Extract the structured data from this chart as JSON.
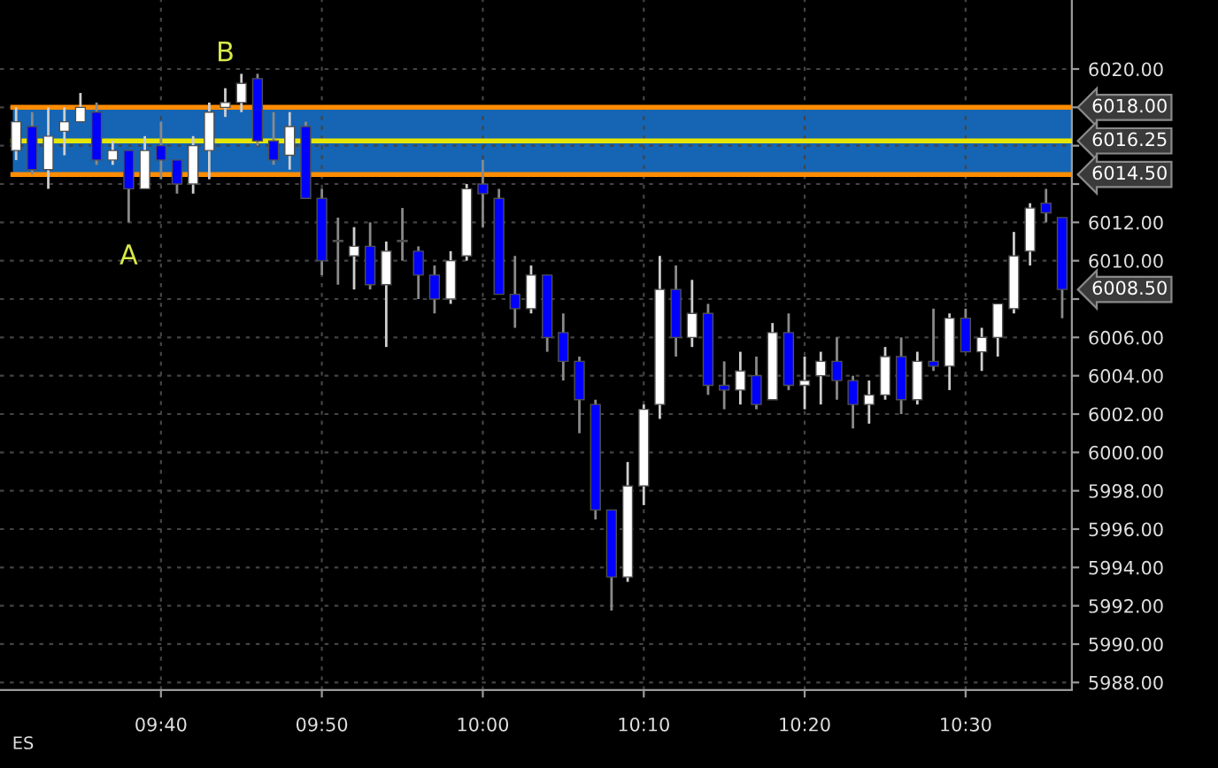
{
  "chart_data": {
    "type": "candlestick",
    "x": [
      9.5167,
      9.5333,
      9.55,
      9.5667,
      9.5833,
      9.6,
      9.6167,
      9.6333,
      9.65,
      9.6667,
      9.6833,
      9.7,
      9.7167,
      9.7333,
      9.75,
      9.7667,
      9.7833,
      9.8,
      9.8167,
      9.8333,
      9.85,
      9.8667,
      9.8833,
      9.9,
      9.9167,
      9.9333,
      9.95,
      9.9667,
      9.9833,
      10.0,
      10.0167,
      10.0333,
      10.05,
      10.0667,
      10.0833,
      10.1,
      10.1167,
      10.1333,
      10.15,
      10.1667,
      10.1833,
      10.2,
      10.2167,
      10.2333,
      10.25,
      10.2667,
      10.2833,
      10.3,
      10.3167,
      10.3333,
      10.35,
      10.3667,
      10.3833,
      10.4,
      10.4167,
      10.4333,
      10.45,
      10.4667,
      10.4833,
      10.5,
      10.5167,
      10.5333,
      10.55,
      10.5667,
      10.5833,
      10.6
    ],
    "ohlc": [
      [
        6015.75,
        6018,
        6015.25,
        6017.25
      ],
      [
        6017,
        6017.75,
        6014.5,
        6014.75
      ],
      [
        6014.75,
        6018,
        6013.75,
        6016.5
      ],
      [
        6016.75,
        6018,
        6015.5,
        6017.25
      ],
      [
        6017.25,
        6018.75,
        6017.25,
        6018
      ],
      [
        6017.75,
        6018.25,
        6015,
        6015.25
      ],
      [
        6015.25,
        6016.25,
        6015,
        6015.75
      ],
      [
        6015.75,
        6015.75,
        6012,
        6013.75
      ],
      [
        6013.75,
        6016.5,
        6013.75,
        6015.75
      ],
      [
        6016,
        6017.25,
        6014.25,
        6015.25
      ],
      [
        6015.25,
        6015.25,
        6013.5,
        6014
      ],
      [
        6014,
        6016.5,
        6013.5,
        6016
      ],
      [
        6015.75,
        6018.25,
        6014.25,
        6017.75
      ],
      [
        6018,
        6019,
        6017.5,
        6018.25
      ],
      [
        6018.25,
        6019.75,
        6017.75,
        6019.25
      ],
      [
        6019.5,
        6019.75,
        6016,
        6016.25
      ],
      [
        6016.25,
        6017.75,
        6015,
        6015.25
      ],
      [
        6015.5,
        6017.75,
        6014.75,
        6017
      ],
      [
        6017,
        6017.25,
        6013.25,
        6013.25
      ],
      [
        6013.25,
        6013.75,
        6009.25,
        6010
      ],
      [
        6011,
        6012.25,
        6008.75,
        6011
      ],
      [
        6010.25,
        6011.75,
        6008.5,
        6010.75
      ],
      [
        6010.75,
        6012,
        6008.5,
        6008.75
      ],
      [
        6008.75,
        6011,
        6005.5,
        6010.5
      ],
      [
        6011,
        6012.75,
        6010,
        6011
      ],
      [
        6010.5,
        6010.75,
        6008,
        6009.25
      ],
      [
        6009.25,
        6009.75,
        6007.25,
        6008
      ],
      [
        6008,
        6010.5,
        6007.75,
        6010
      ],
      [
        6010.25,
        6014,
        6010,
        6013.75
      ],
      [
        6014,
        6015.25,
        6011.75,
        6013.5
      ],
      [
        6013.25,
        6013.75,
        6008.25,
        6008.25
      ],
      [
        6008.25,
        6010.25,
        6006.5,
        6007.5
      ],
      [
        6007.5,
        6009.75,
        6007.25,
        6009.25
      ],
      [
        6009.25,
        6009.25,
        6005.25,
        6006
      ],
      [
        6006.25,
        6007.25,
        6003.75,
        6004.75
      ],
      [
        6004.75,
        6005,
        6001,
        6002.75
      ],
      [
        6002.5,
        6002.75,
        5996.5,
        5997
      ],
      [
        5997,
        5997,
        5991.75,
        5993.5
      ],
      [
        5993.5,
        5999.5,
        5993.25,
        5998.25
      ],
      [
        5998.25,
        6002.5,
        5997.25,
        6002.25
      ],
      [
        6002.5,
        6010.25,
        6001.75,
        6008.5
      ],
      [
        6008.5,
        6009.75,
        6005,
        6006
      ],
      [
        6006,
        6009,
        6005.5,
        6007.25
      ],
      [
        6007.25,
        6007.75,
        6003,
        6003.5
      ],
      [
        6003.5,
        6004.75,
        6002.25,
        6003.25
      ],
      [
        6003.25,
        6005.25,
        6002.5,
        6004.25
      ],
      [
        6004,
        6005,
        6002.25,
        6002.5
      ],
      [
        6002.75,
        6006.75,
        6002.75,
        6006.25
      ],
      [
        6006.25,
        6007.25,
        6003.25,
        6003.5
      ],
      [
        6003.5,
        6005,
        6002.25,
        6003.75
      ],
      [
        6004,
        6005.25,
        6002.5,
        6004.75
      ],
      [
        6004.75,
        6006,
        6002.75,
        6003.75
      ],
      [
        6003.75,
        6004,
        6001.25,
        6002.5
      ],
      [
        6002.5,
        6003.75,
        6001.5,
        6003
      ],
      [
        6003,
        6005.5,
        6002.75,
        6005
      ],
      [
        6005,
        6006,
        6002,
        6002.75
      ],
      [
        6002.75,
        6005.25,
        6002.5,
        6004.75
      ],
      [
        6004.75,
        6007.5,
        6004.25,
        6004.5
      ],
      [
        6004.5,
        6007.25,
        6003.25,
        6007
      ],
      [
        6007,
        6007.5,
        6005.25,
        6005.25
      ],
      [
        6005.25,
        6006.5,
        6004.25,
        6006
      ],
      [
        6006,
        6007.75,
        6005,
        6007.75
      ],
      [
        6007.5,
        6011.5,
        6007.25,
        6010.25
      ],
      [
        6010.5,
        6013,
        6009.75,
        6012.75
      ],
      [
        6013,
        6013.75,
        6012,
        6012.5
      ],
      [
        6012.25,
        6012.25,
        6007,
        6008.5
      ]
    ],
    "colors": [
      "#ffffff",
      "#0000ff",
      "#ffffff",
      "#ffffff",
      "#ffffff",
      "#0000ff",
      "#ffffff",
      "#0000ff",
      "#ffffff",
      "#0000ff",
      "#0000ff",
      "#ffffff",
      "#ffffff",
      "#ffffff",
      "#ffffff",
      "#0000ff",
      "#0000ff",
      "#ffffff",
      "#0000ff",
      "#0000ff",
      "#808080",
      "#ffffff",
      "#0000ff",
      "#ffffff",
      "#808080",
      "#0000ff",
      "#0000ff",
      "#ffffff",
      "#ffffff",
      "#0000ff",
      "#0000ff",
      "#0000ff",
      "#ffffff",
      "#0000ff",
      "#0000ff",
      "#0000ff",
      "#0000ff",
      "#0000ff",
      "#ffffff",
      "#ffffff",
      "#ffffff",
      "#0000ff",
      "#ffffff",
      "#0000ff",
      "#0000ff",
      "#ffffff",
      "#0000ff",
      "#ffffff",
      "#0000ff",
      "#ffffff",
      "#ffffff",
      "#0000ff",
      "#0000ff",
      "#ffffff",
      "#ffffff",
      "#0000ff",
      "#ffffff",
      "#0000ff",
      "#ffffff",
      "#0000ff",
      "#ffffff",
      "#ffffff",
      "#ffffff",
      "#ffffff",
      "#0000ff",
      "#0000ff"
    ],
    "xlim": [
      9.5,
      10.61
    ],
    "xticks": [
      {
        "value": 9.6667,
        "label": "09:40"
      },
      {
        "value": 9.8333,
        "label": "09:50"
      },
      {
        "value": 10.0,
        "label": "10:00"
      },
      {
        "value": 10.1667,
        "label": "10:10"
      },
      {
        "value": 10.3333,
        "label": "10:20"
      },
      {
        "value": 10.5,
        "label": "10:30"
      }
    ],
    "ylim": [
      5987.6,
      6023.6
    ],
    "yticks": [
      {
        "value": 5988,
        "label": "5988.00"
      },
      {
        "value": 5990,
        "label": "5990.00"
      },
      {
        "value": 5992,
        "label": "5992.00"
      },
      {
        "value": 5994,
        "label": "5994.00"
      },
      {
        "value": 5996,
        "label": "5996.00"
      },
      {
        "value": 5998,
        "label": "5998.00"
      },
      {
        "value": 6000,
        "label": "6000.00"
      },
      {
        "value": 6002,
        "label": "6002.00"
      },
      {
        "value": 6004,
        "label": "6004.00"
      },
      {
        "value": 6006,
        "label": "6006.00"
      },
      {
        "value": 6008,
        "label": null
      },
      {
        "value": 6010,
        "label": "6010.00"
      },
      {
        "value": 6012,
        "label": "6012.00"
      },
      {
        "value": 6014,
        "label": null
      },
      {
        "value": 6016,
        "label": null
      },
      {
        "value": 6018,
        "label": null
      },
      {
        "value": 6020,
        "label": "6020.00"
      }
    ],
    "grid": true,
    "bands": [
      {
        "axis": "y",
        "from": 6014.5,
        "to": 6018,
        "color": "#1565b4"
      }
    ],
    "ref_lines": [
      {
        "axis": "y",
        "value": 6018,
        "label": "6018.00",
        "color": "#ff8c00"
      },
      {
        "axis": "y",
        "value": 6016.25,
        "label": "6016.25",
        "color": "#e6e600"
      },
      {
        "axis": "y",
        "value": 6014.5,
        "label": "6014.50",
        "color": "#ff8c00"
      }
    ],
    "annotations": [
      {
        "text": "A",
        "x": 9.6333,
        "y": 6012
      },
      {
        "text": "B",
        "x": 9.7333,
        "y": 6019
      },
      {
        "text": "6008.50",
        "x": 10.6,
        "y": 6008.5
      },
      "ES"
    ]
  }
}
